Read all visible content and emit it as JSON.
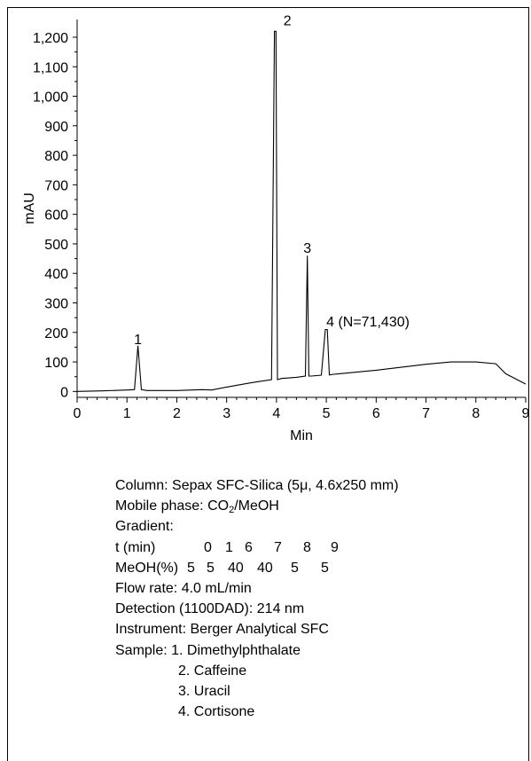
{
  "chart_data": {
    "type": "line",
    "xlabel": "Min",
    "ylabel": "mAU",
    "xlim": [
      0,
      9
    ],
    "ylim": [
      -20,
      1260
    ],
    "x_ticks": [
      "0",
      "1",
      "2",
      "3",
      "4",
      "5",
      "6",
      "7",
      "8",
      "9"
    ],
    "y_ticks": [
      "0",
      "100",
      "200",
      "300",
      "400",
      "500",
      "600",
      "700",
      "800",
      "900",
      "1,000",
      "1,100",
      "1,200"
    ],
    "series": [
      {
        "x": [
          0,
          0.5,
          1.0,
          1.15,
          1.22,
          1.29,
          1.4,
          2.0,
          2.5,
          2.7,
          3.0,
          3.5,
          3.9,
          3.96,
          3.99,
          4.02,
          4.1,
          4.4,
          4.58,
          4.62,
          4.65,
          4.7,
          4.9,
          4.98,
          5.02,
          5.06,
          5.15,
          6.0,
          7.0,
          7.5,
          8.0,
          8.4,
          8.6,
          9.0
        ],
        "y": [
          0,
          2,
          5,
          6,
          155,
          6,
          3,
          3,
          6,
          5,
          15,
          30,
          40,
          1220,
          1220,
          40,
          44,
          48,
          52,
          460,
          52,
          52,
          55,
          210,
          210,
          56,
          58,
          72,
          92,
          100,
          100,
          94,
          60,
          25
        ]
      }
    ],
    "annotations": [
      {
        "label": "1",
        "x": 1.22,
        "y": 160
      },
      {
        "label": "2",
        "x": 4.22,
        "y": 1240
      },
      {
        "label": "3",
        "x": 4.62,
        "y": 470
      },
      {
        "label": "4 (N=71,430)",
        "x": 5.0,
        "y": 220
      }
    ],
    "colors": {
      "line": "#000000"
    }
  },
  "notes": {
    "column": "Column: Sepax SFC-Silica (5μ, 4.6x250 mm)",
    "mobile_phase_prefix": "Mobile phase: CO",
    "mobile_phase_sub": "2",
    "mobile_phase_suffix": "/MeOH",
    "gradient": "Gradient:",
    "gradient_table": {
      "time_label": "t (min)",
      "time_values": [
        "0",
        "1",
        "6",
        "7",
        "8",
        "9"
      ],
      "meoh_label": "MeOH(%)",
      "meoh_values": [
        "5",
        "5",
        "40",
        "40",
        "5",
        "5"
      ]
    },
    "flow_rate": "Flow rate: 4.0 mL/min",
    "detection": "Detection (1100DAD): 214 nm",
    "instrument": "Instrument: Berger Analytical SFC",
    "sample_heading": "Sample: 1. Dimethylphthalate",
    "samples": [
      "2. Caffeine",
      "3. Uracil",
      "4. Cortisone"
    ]
  }
}
